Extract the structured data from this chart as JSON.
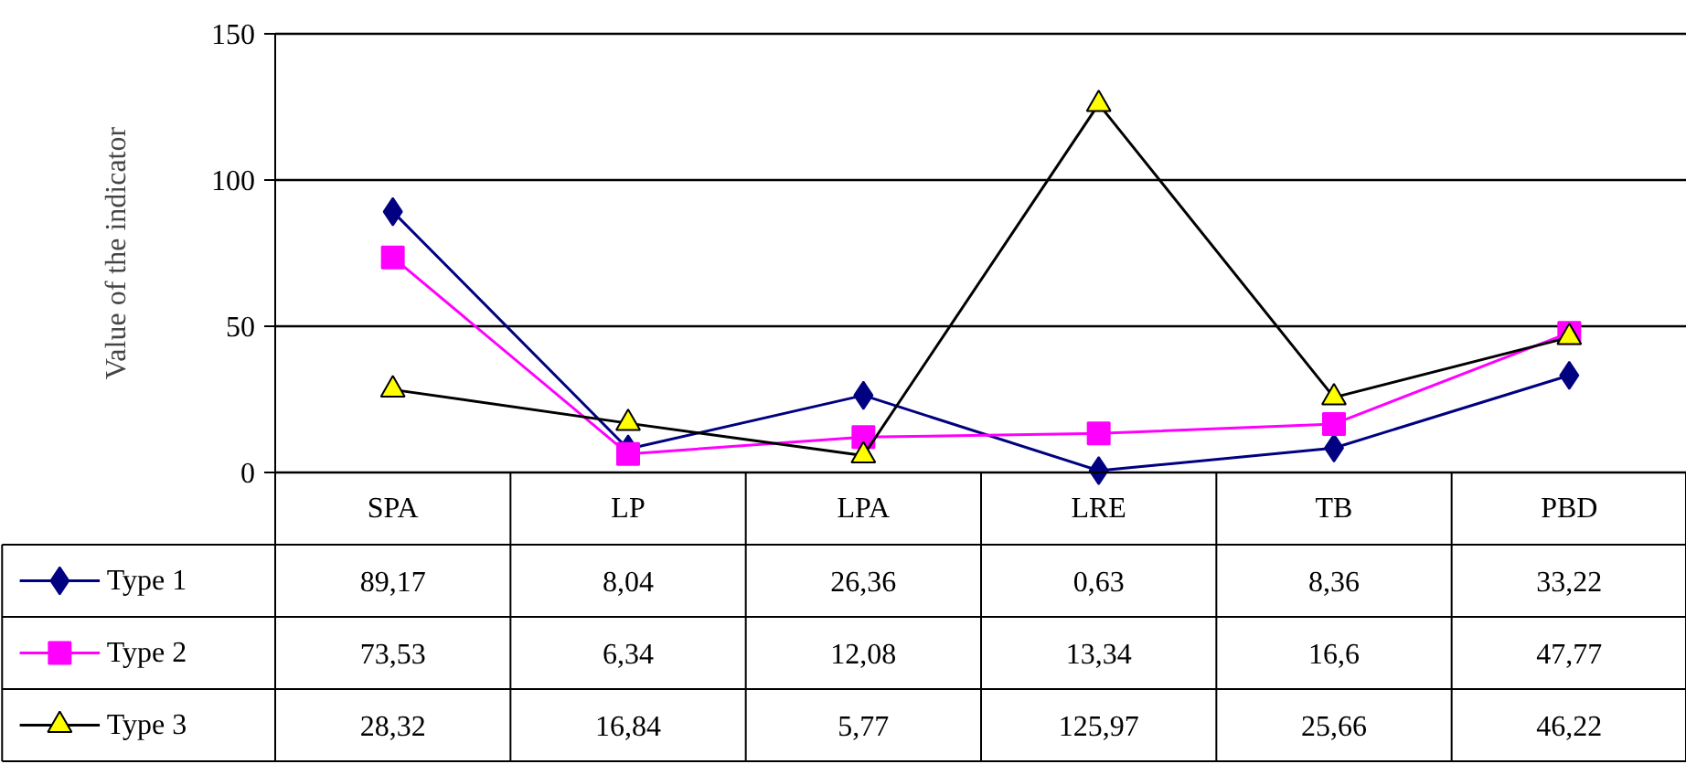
{
  "chart_data": {
    "type": "line",
    "ylabel": "Value of the indicator",
    "categories": [
      "SPA",
      "LP",
      "LPA",
      "LRE",
      "TB",
      "PBD"
    ],
    "series": [
      {
        "name": "Type 1",
        "color": "#000080",
        "marker": "diamond",
        "values": [
          89.17,
          8.04,
          26.36,
          0.63,
          8.36,
          33.22
        ],
        "value_labels": [
          "89,17",
          "8,04",
          "26,36",
          "0,63",
          "8,36",
          "33,22"
        ]
      },
      {
        "name": "Type 2",
        "color": "#ff00ff",
        "marker": "square",
        "values": [
          73.53,
          6.34,
          12.08,
          13.34,
          16.6,
          47.77
        ],
        "value_labels": [
          "73,53",
          "6,34",
          "12,08",
          "13,34",
          "16,6",
          "47,77"
        ]
      },
      {
        "name": "Type 3",
        "color": "#000000",
        "marker": "triangle",
        "colors": [
          "#ffff00",
          "#ffff00",
          "#ffff00",
          "#ffff00",
          "#ffff00",
          "#ffff00"
        ],
        "values": [
          28.32,
          16.84,
          5.77,
          125.97,
          25.66,
          46.22
        ],
        "value_labels": [
          "28,32",
          "16,84",
          "5,77",
          "125,97",
          "25,66",
          "46,22"
        ]
      }
    ],
    "ylim": [
      0,
      150
    ],
    "yticks": [
      0,
      50,
      100,
      150
    ],
    "grid": "y",
    "legend": "bottom left"
  }
}
